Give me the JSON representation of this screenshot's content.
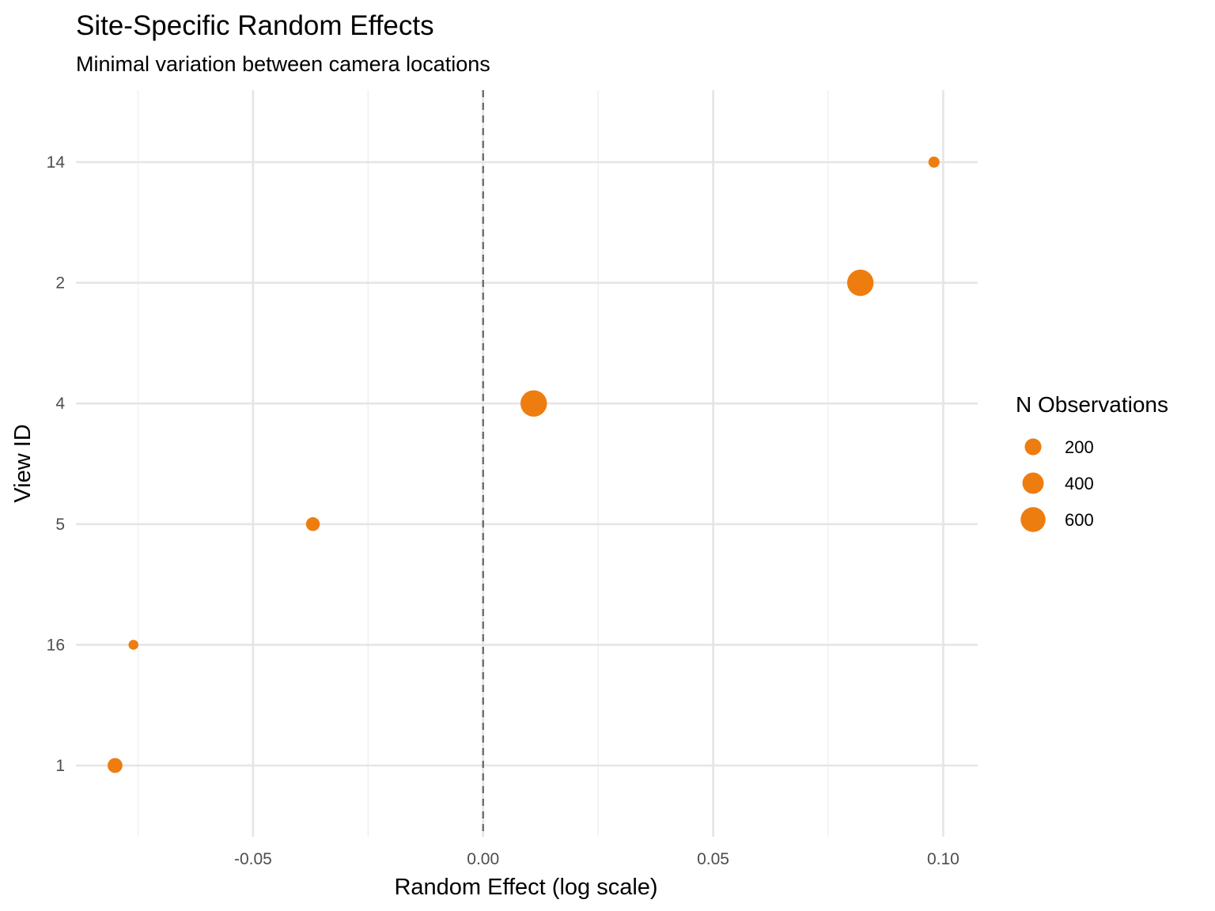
{
  "chart_data": {
    "type": "scatter",
    "title": "Site-Specific Random Effects",
    "subtitle": "Minimal variation between camera locations",
    "xlabel": "Random Effect (log scale)",
    "ylabel": "View ID",
    "xlim": [
      -0.0885,
      0.1075
    ],
    "x_ticks": [
      -0.05,
      0.0,
      0.05,
      0.1
    ],
    "x_tick_labels": [
      "-0.05",
      "0.00",
      "0.05",
      "0.10"
    ],
    "categories": [
      "1",
      "16",
      "5",
      "4",
      "2",
      "14"
    ],
    "points": [
      {
        "view_id": "14",
        "effect": 0.098,
        "n_obs": 50
      },
      {
        "view_id": "2",
        "effect": 0.082,
        "n_obs": 700
      },
      {
        "view_id": "4",
        "effect": 0.011,
        "n_obs": 700
      },
      {
        "view_id": "5",
        "effect": -0.037,
        "n_obs": 110
      },
      {
        "view_id": "16",
        "effect": -0.076,
        "n_obs": 30
      },
      {
        "view_id": "1",
        "effect": -0.08,
        "n_obs": 140
      }
    ],
    "vline": {
      "x": 0,
      "style": "dashed",
      "color": "#6e6e6e"
    },
    "point_color": "#EE7D10",
    "grid": true,
    "legend": {
      "title": "N Observations",
      "position": "right",
      "entries": [
        {
          "label": "200",
          "value": 200
        },
        {
          "label": "400",
          "value": 400
        },
        {
          "label": "600",
          "value": 600
        }
      ]
    }
  }
}
